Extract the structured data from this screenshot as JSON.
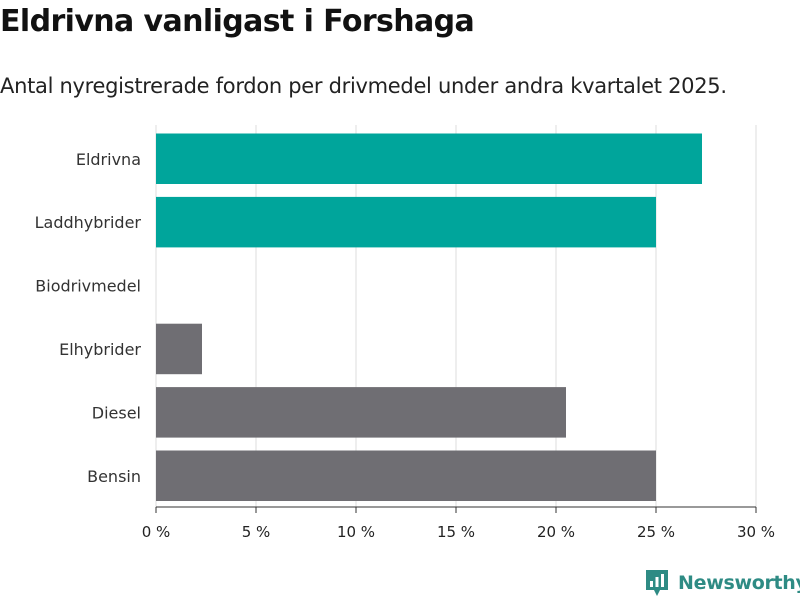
{
  "header": {
    "title": "Eldrivna vanligast i Forshaga",
    "subtitle": "Antal nyregistrerade fordon per drivmedel under andra kvartalet 2025."
  },
  "branding": {
    "logo_text": "Newsworthy",
    "logo_icon": "newsworthy-chart-icon",
    "logo_color": "#2e8b84"
  },
  "chart_data": {
    "type": "bar",
    "orientation": "horizontal",
    "categories": [
      "Eldrivna",
      "Laddhybrider",
      "Biodrivmedel",
      "Elhybrider",
      "Diesel",
      "Bensin"
    ],
    "values": [
      27.3,
      25.0,
      0,
      2.3,
      20.5,
      25.0
    ],
    "colors": [
      "#00a59b",
      "#00a59b",
      "#6f6e73",
      "#6f6e73",
      "#6f6e73",
      "#6f6e73"
    ],
    "xlim": [
      0,
      30
    ],
    "x_ticks": [
      0,
      5,
      10,
      15,
      20,
      25,
      30
    ],
    "x_tick_labels": [
      "0 %",
      "5 %",
      "10 %",
      "15 %",
      "20 %",
      "25 %",
      "30 %"
    ],
    "grid": true,
    "legend": "none"
  }
}
